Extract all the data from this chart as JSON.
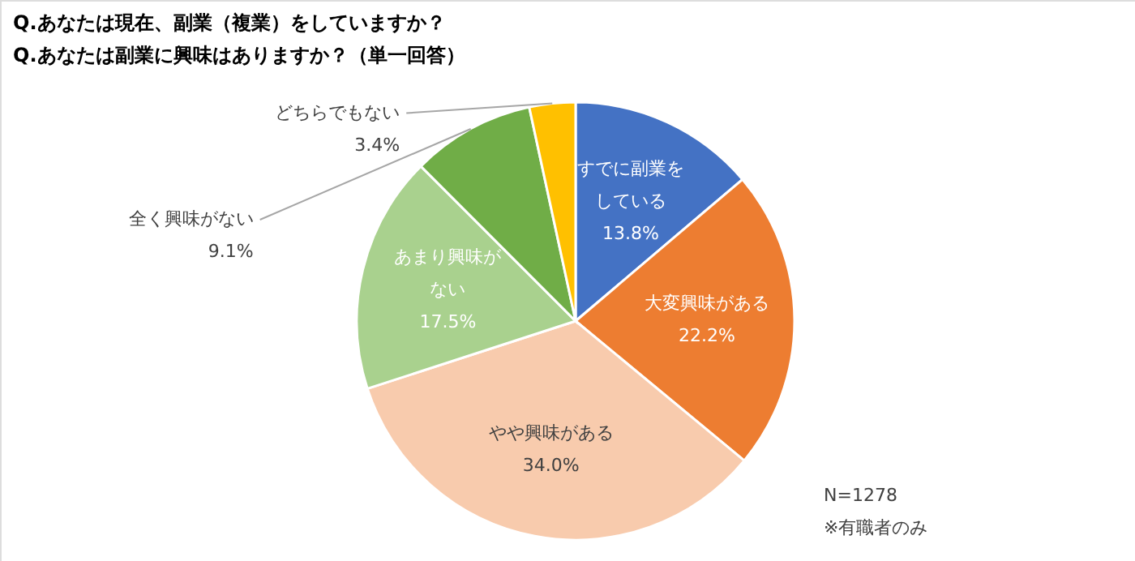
{
  "chart_data": {
    "type": "pie",
    "title": [
      "Q.あなたは現在、副業（複業）をしていますか？",
      "Q.あなたは副業に興味はありますか？（単一回答）"
    ],
    "categories": [
      "すでに副業をしている",
      "大変興味がある",
      "やや興味がある",
      "あまり興味がない",
      "全く興味がない",
      "どちらでもない"
    ],
    "values": [
      13.8,
      22.2,
      34.0,
      17.5,
      9.1,
      3.4
    ],
    "value_labels": [
      "13.8%",
      "22.2%",
      "34.0%",
      "17.5%",
      "9.1%",
      "3.4%"
    ],
    "colors": [
      "#4472c4",
      "#ed7d31",
      "#f8cbad",
      "#a9d18e",
      "#70ad47",
      "#ffc000"
    ],
    "annotations": [
      "N=1278",
      "※有職者のみ"
    ]
  }
}
